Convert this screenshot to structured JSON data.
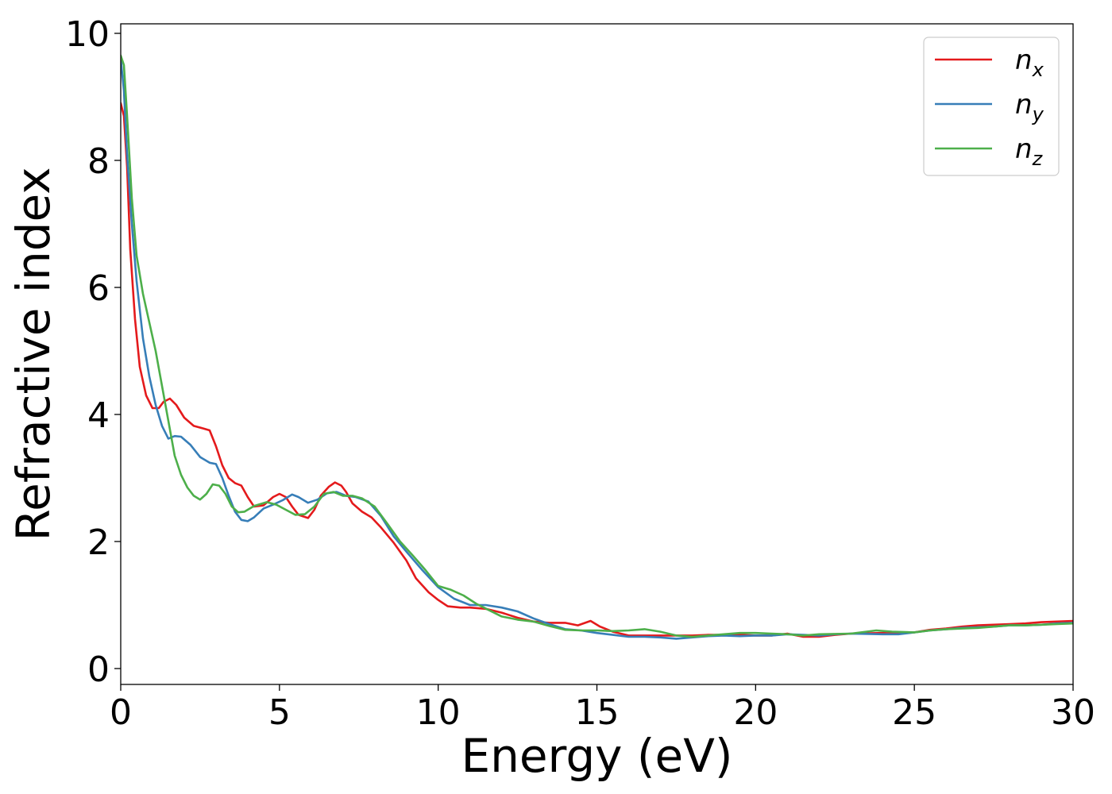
{
  "chart_data": {
    "type": "line",
    "title": "",
    "xlabel": "Energy (eV)",
    "ylabel": "Refractive index",
    "xlim": [
      0,
      30
    ],
    "ylim": [
      -0.25,
      10.15
    ],
    "xticks": [
      0,
      5,
      10,
      15,
      20,
      25,
      30
    ],
    "yticks": [
      0,
      2,
      4,
      6,
      8,
      10
    ],
    "grid": false,
    "legend_position": "top-right",
    "series": [
      {
        "name": "n_x",
        "label_base": "n",
        "label_sub": "x",
        "color": "#e41a1c",
        "points": [
          [
            0.0,
            8.9
          ],
          [
            0.1,
            8.7
          ],
          [
            0.2,
            7.9
          ],
          [
            0.3,
            6.6
          ],
          [
            0.45,
            5.5
          ],
          [
            0.6,
            4.75
          ],
          [
            0.8,
            4.3
          ],
          [
            1.0,
            4.1
          ],
          [
            1.2,
            4.1
          ],
          [
            1.35,
            4.2
          ],
          [
            1.55,
            4.25
          ],
          [
            1.75,
            4.15
          ],
          [
            2.0,
            3.95
          ],
          [
            2.3,
            3.82
          ],
          [
            2.6,
            3.78
          ],
          [
            2.8,
            3.75
          ],
          [
            3.0,
            3.5
          ],
          [
            3.2,
            3.2
          ],
          [
            3.4,
            3.0
          ],
          [
            3.6,
            2.92
          ],
          [
            3.8,
            2.88
          ],
          [
            4.0,
            2.7
          ],
          [
            4.2,
            2.55
          ],
          [
            4.5,
            2.57
          ],
          [
            4.8,
            2.7
          ],
          [
            5.0,
            2.75
          ],
          [
            5.2,
            2.7
          ],
          [
            5.4,
            2.55
          ],
          [
            5.6,
            2.42
          ],
          [
            5.9,
            2.37
          ],
          [
            6.1,
            2.5
          ],
          [
            6.3,
            2.72
          ],
          [
            6.55,
            2.86
          ],
          [
            6.75,
            2.93
          ],
          [
            6.95,
            2.88
          ],
          [
            7.1,
            2.78
          ],
          [
            7.3,
            2.6
          ],
          [
            7.6,
            2.47
          ],
          [
            7.9,
            2.38
          ],
          [
            8.2,
            2.22
          ],
          [
            8.6,
            1.98
          ],
          [
            9.0,
            1.7
          ],
          [
            9.3,
            1.42
          ],
          [
            9.7,
            1.2
          ],
          [
            10.0,
            1.08
          ],
          [
            10.3,
            0.98
          ],
          [
            10.7,
            0.96
          ],
          [
            11.0,
            0.96
          ],
          [
            11.5,
            0.94
          ],
          [
            12.0,
            0.88
          ],
          [
            12.5,
            0.8
          ],
          [
            13.0,
            0.74
          ],
          [
            13.5,
            0.72
          ],
          [
            14.0,
            0.72
          ],
          [
            14.4,
            0.68
          ],
          [
            14.8,
            0.75
          ],
          [
            15.1,
            0.66
          ],
          [
            15.5,
            0.58
          ],
          [
            16.0,
            0.52
          ],
          [
            16.5,
            0.52
          ],
          [
            17.0,
            0.52
          ],
          [
            17.5,
            0.52
          ],
          [
            18.0,
            0.52
          ],
          [
            18.5,
            0.53
          ],
          [
            19.0,
            0.53
          ],
          [
            19.5,
            0.53
          ],
          [
            20.0,
            0.52
          ],
          [
            20.5,
            0.52
          ],
          [
            21.0,
            0.55
          ],
          [
            21.5,
            0.5
          ],
          [
            22.0,
            0.5
          ],
          [
            22.5,
            0.53
          ],
          [
            23.0,
            0.55
          ],
          [
            24.0,
            0.56
          ],
          [
            24.5,
            0.55
          ],
          [
            25.0,
            0.57
          ],
          [
            25.5,
            0.61
          ],
          [
            26.0,
            0.63
          ],
          [
            26.5,
            0.66
          ],
          [
            27.0,
            0.68
          ],
          [
            27.5,
            0.69
          ],
          [
            28.0,
            0.7
          ],
          [
            28.5,
            0.71
          ],
          [
            29.0,
            0.73
          ],
          [
            29.5,
            0.74
          ],
          [
            30.0,
            0.75
          ]
        ]
      },
      {
        "name": "n_y",
        "label_base": "n",
        "label_sub": "y",
        "color": "#377eb8",
        "points": [
          [
            0.0,
            9.6
          ],
          [
            0.1,
            9.1
          ],
          [
            0.2,
            8.1
          ],
          [
            0.35,
            7.0
          ],
          [
            0.5,
            6.1
          ],
          [
            0.7,
            5.2
          ],
          [
            0.9,
            4.6
          ],
          [
            1.1,
            4.15
          ],
          [
            1.3,
            3.82
          ],
          [
            1.5,
            3.62
          ],
          [
            1.7,
            3.66
          ],
          [
            1.9,
            3.65
          ],
          [
            2.2,
            3.52
          ],
          [
            2.5,
            3.33
          ],
          [
            2.8,
            3.24
          ],
          [
            3.0,
            3.22
          ],
          [
            3.2,
            3.0
          ],
          [
            3.4,
            2.72
          ],
          [
            3.6,
            2.47
          ],
          [
            3.8,
            2.34
          ],
          [
            4.0,
            2.32
          ],
          [
            4.2,
            2.38
          ],
          [
            4.5,
            2.52
          ],
          [
            4.8,
            2.58
          ],
          [
            5.1,
            2.65
          ],
          [
            5.4,
            2.74
          ],
          [
            5.6,
            2.7
          ],
          [
            5.9,
            2.61
          ],
          [
            6.2,
            2.66
          ],
          [
            6.5,
            2.76
          ],
          [
            6.8,
            2.78
          ],
          [
            7.1,
            2.72
          ],
          [
            7.4,
            2.7
          ],
          [
            7.8,
            2.63
          ],
          [
            8.2,
            2.4
          ],
          [
            8.6,
            2.08
          ],
          [
            9.0,
            1.84
          ],
          [
            9.5,
            1.55
          ],
          [
            10.0,
            1.28
          ],
          [
            10.5,
            1.1
          ],
          [
            11.0,
            1.0
          ],
          [
            11.5,
            1.0
          ],
          [
            12.0,
            0.96
          ],
          [
            12.5,
            0.9
          ],
          [
            13.0,
            0.79
          ],
          [
            13.5,
            0.7
          ],
          [
            14.0,
            0.62
          ],
          [
            14.5,
            0.6
          ],
          [
            15.0,
            0.56
          ],
          [
            15.5,
            0.53
          ],
          [
            16.0,
            0.5
          ],
          [
            16.5,
            0.5
          ],
          [
            17.0,
            0.49
          ],
          [
            17.5,
            0.47
          ],
          [
            18.0,
            0.49
          ],
          [
            18.5,
            0.51
          ],
          [
            19.0,
            0.52
          ],
          [
            19.5,
            0.51
          ],
          [
            20.0,
            0.52
          ],
          [
            20.5,
            0.52
          ],
          [
            21.0,
            0.54
          ],
          [
            21.5,
            0.53
          ],
          [
            22.0,
            0.52
          ],
          [
            22.5,
            0.54
          ],
          [
            23.0,
            0.55
          ],
          [
            24.0,
            0.54
          ],
          [
            24.5,
            0.54
          ],
          [
            25.0,
            0.57
          ],
          [
            25.5,
            0.6
          ],
          [
            26.0,
            0.62
          ],
          [
            26.5,
            0.64
          ],
          [
            27.0,
            0.65
          ],
          [
            27.5,
            0.66
          ],
          [
            28.0,
            0.68
          ],
          [
            28.5,
            0.68
          ],
          [
            29.0,
            0.69
          ],
          [
            29.5,
            0.71
          ],
          [
            30.0,
            0.72
          ]
        ]
      },
      {
        "name": "n_z",
        "label_base": "n",
        "label_sub": "z",
        "color": "#4daf4a",
        "points": [
          [
            0.0,
            9.65
          ],
          [
            0.1,
            9.5
          ],
          [
            0.2,
            8.7
          ],
          [
            0.35,
            7.4
          ],
          [
            0.5,
            6.5
          ],
          [
            0.7,
            5.9
          ],
          [
            0.9,
            5.45
          ],
          [
            1.1,
            5.0
          ],
          [
            1.3,
            4.45
          ],
          [
            1.5,
            3.9
          ],
          [
            1.7,
            3.35
          ],
          [
            1.9,
            3.05
          ],
          [
            2.1,
            2.85
          ],
          [
            2.3,
            2.72
          ],
          [
            2.5,
            2.66
          ],
          [
            2.7,
            2.75
          ],
          [
            2.9,
            2.9
          ],
          [
            3.1,
            2.88
          ],
          [
            3.3,
            2.75
          ],
          [
            3.5,
            2.55
          ],
          [
            3.7,
            2.46
          ],
          [
            3.9,
            2.47
          ],
          [
            4.2,
            2.56
          ],
          [
            4.6,
            2.62
          ],
          [
            4.9,
            2.58
          ],
          [
            5.2,
            2.5
          ],
          [
            5.5,
            2.42
          ],
          [
            5.8,
            2.43
          ],
          [
            6.1,
            2.55
          ],
          [
            6.4,
            2.75
          ],
          [
            6.7,
            2.78
          ],
          [
            7.0,
            2.72
          ],
          [
            7.3,
            2.72
          ],
          [
            7.6,
            2.68
          ],
          [
            8.0,
            2.55
          ],
          [
            8.4,
            2.28
          ],
          [
            8.8,
            2.0
          ],
          [
            9.2,
            1.78
          ],
          [
            9.6,
            1.55
          ],
          [
            10.0,
            1.3
          ],
          [
            10.4,
            1.24
          ],
          [
            10.8,
            1.15
          ],
          [
            11.2,
            1.02
          ],
          [
            11.6,
            0.92
          ],
          [
            12.0,
            0.82
          ],
          [
            12.5,
            0.77
          ],
          [
            13.0,
            0.74
          ],
          [
            13.5,
            0.67
          ],
          [
            14.0,
            0.61
          ],
          [
            14.5,
            0.6
          ],
          [
            15.0,
            0.6
          ],
          [
            15.5,
            0.59
          ],
          [
            16.0,
            0.6
          ],
          [
            16.5,
            0.62
          ],
          [
            17.0,
            0.58
          ],
          [
            17.5,
            0.52
          ],
          [
            18.0,
            0.5
          ],
          [
            18.5,
            0.52
          ],
          [
            19.0,
            0.54
          ],
          [
            19.5,
            0.56
          ],
          [
            20.0,
            0.56
          ],
          [
            20.5,
            0.55
          ],
          [
            21.0,
            0.54
          ],
          [
            21.5,
            0.52
          ],
          [
            22.0,
            0.54
          ],
          [
            23.0,
            0.55
          ],
          [
            23.8,
            0.6
          ],
          [
            24.3,
            0.58
          ],
          [
            25.0,
            0.57
          ],
          [
            25.5,
            0.6
          ],
          [
            26.0,
            0.62
          ],
          [
            26.5,
            0.63
          ],
          [
            27.0,
            0.64
          ],
          [
            27.5,
            0.66
          ],
          [
            28.0,
            0.68
          ],
          [
            28.5,
            0.68
          ],
          [
            29.0,
            0.69
          ],
          [
            29.5,
            0.7
          ],
          [
            30.0,
            0.71
          ]
        ]
      }
    ]
  }
}
